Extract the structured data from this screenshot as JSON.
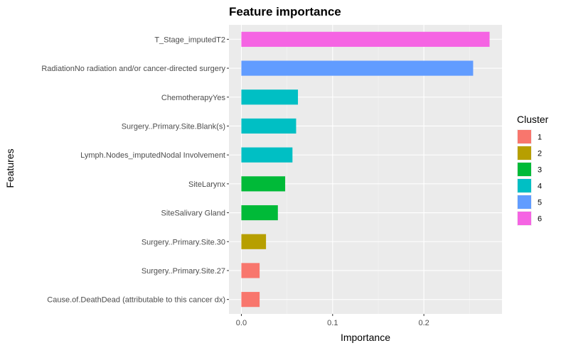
{
  "chart_data": {
    "type": "bar",
    "orientation": "horizontal",
    "title": "Feature importance",
    "xlabel": "Importance",
    "ylabel": "Features",
    "xlim": [
      0,
      0.275
    ],
    "x_ticks": [
      0.0,
      0.1,
      0.2
    ],
    "x_tick_labels": [
      "0.0",
      "0.1",
      "0.2"
    ],
    "grid": true,
    "legend_position": "right",
    "categories": [
      "T_Stage_imputedT2",
      "RadiationNo radiation and/or cancer-directed surgery",
      "ChemotherapyYes",
      "Surgery..Primary.Site.Blank(s)",
      "Lymph.Nodes_imputedNodal Involvement",
      "SiteLarynx",
      "SiteSalivary Gland",
      "Surgery..Primary.Site.30",
      "Surgery..Primary.Site.27",
      "Cause.of.DeathDead (attributable to this cancer dx)"
    ],
    "values": [
      0.272,
      0.254,
      0.062,
      0.06,
      0.056,
      0.048,
      0.04,
      0.027,
      0.02,
      0.02
    ],
    "clusters": [
      "6",
      "5",
      "4",
      "4",
      "4",
      "3",
      "3",
      "2",
      "1",
      "1"
    ],
    "legend": {
      "title": "Cluster",
      "entries": [
        {
          "label": "1",
          "color": "#F8766D"
        },
        {
          "label": "2",
          "color": "#B79F00"
        },
        {
          "label": "3",
          "color": "#00BA38"
        },
        {
          "label": "4",
          "color": "#00BFC4"
        },
        {
          "label": "5",
          "color": "#619CFF"
        },
        {
          "label": "6",
          "color": "#F564E3"
        }
      ]
    },
    "colors": {
      "panel_background": "#EBEBEB",
      "grid_major": "#FFFFFF",
      "grid_minor": "#F5F5F5"
    }
  }
}
